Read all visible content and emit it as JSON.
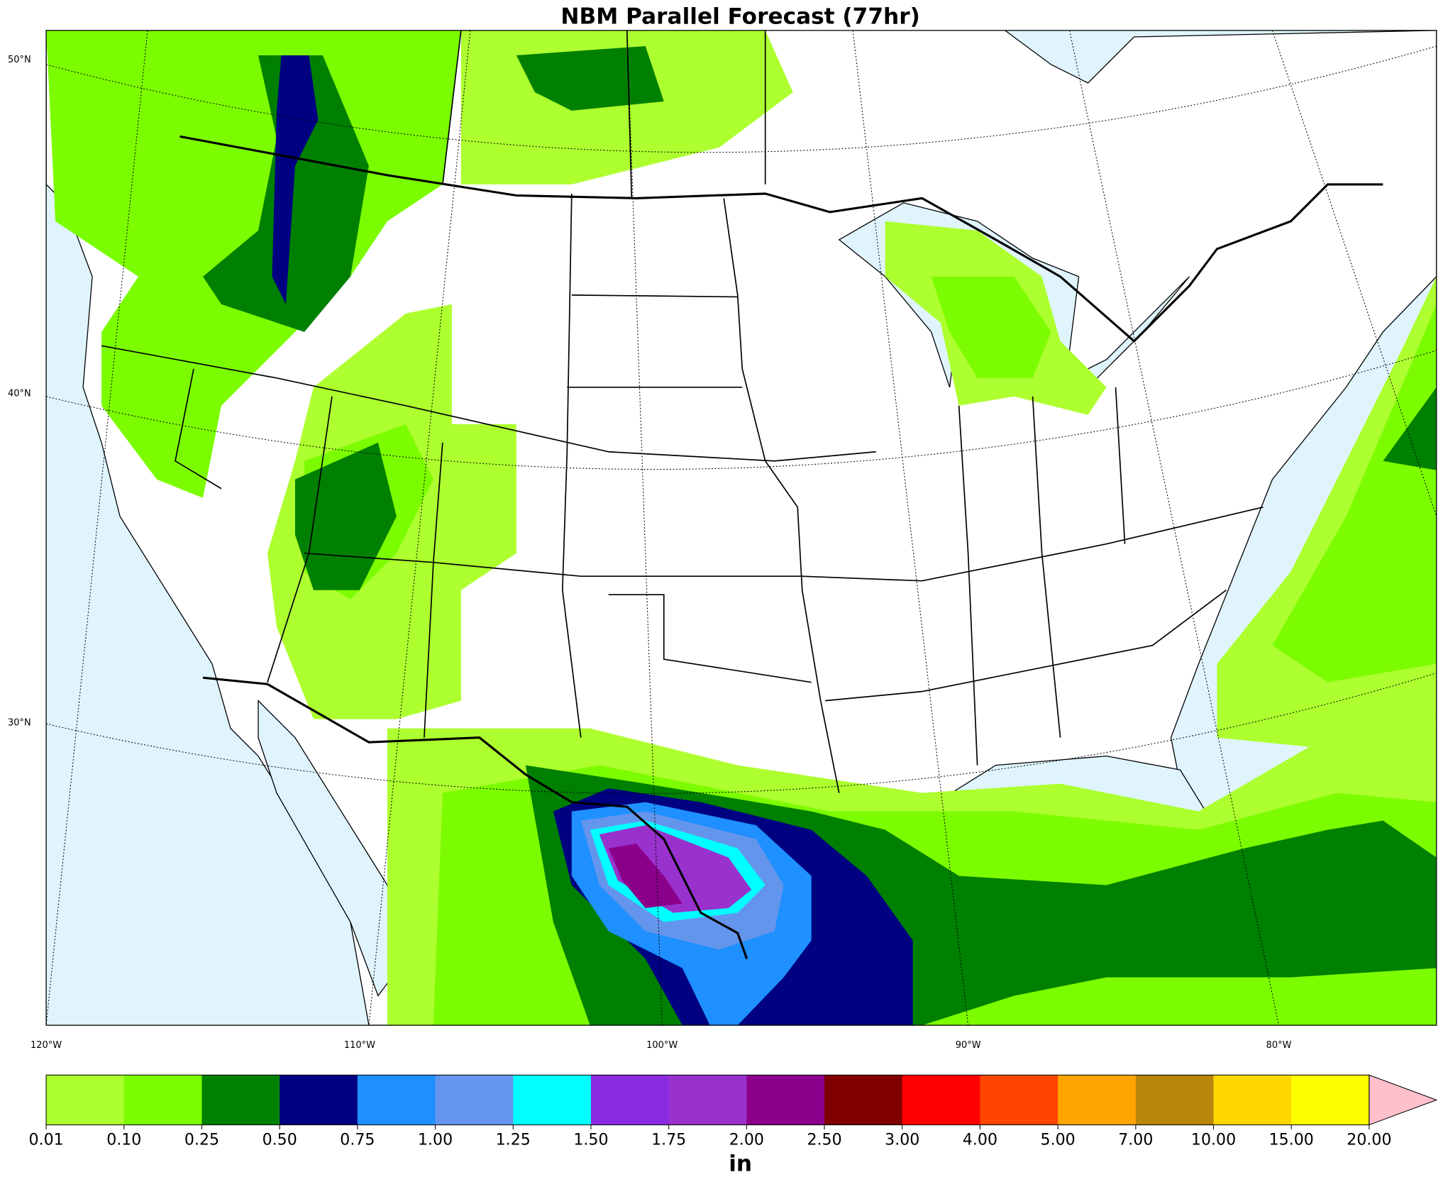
{
  "map": {
    "title": "NBM Parallel Forecast (77hr)",
    "lat_labels": [
      "50°N",
      "40°N",
      "30°N"
    ],
    "lon_labels": [
      "120°W",
      "110°W",
      "100°W",
      "90°W",
      "80°W"
    ]
  },
  "colorbar": {
    "ticks": [
      {
        "value": 0.01,
        "label": "0.01"
      },
      {
        "value": 0.1,
        "label": "0.10"
      },
      {
        "value": 0.25,
        "label": "0.25"
      },
      {
        "value": 0.5,
        "label": "0.50"
      },
      {
        "value": 0.75,
        "label": "0.75"
      },
      {
        "value": 1,
        "label": "1.00"
      },
      {
        "value": 1.25,
        "label": "1.25"
      },
      {
        "value": 1.5,
        "label": "1.50"
      },
      {
        "value": 1.75,
        "label": "1.75"
      },
      {
        "value": 2,
        "label": "2.00"
      },
      {
        "value": 2.5,
        "label": "2.50"
      },
      {
        "value": 3,
        "label": "3.00"
      },
      {
        "value": 4,
        "label": "4.00"
      },
      {
        "value": 5,
        "label": "5.00"
      },
      {
        "value": 7,
        "label": "7.00"
      },
      {
        "value": 10,
        "label": "10.00"
      },
      {
        "value": 15,
        "label": "15.00"
      },
      {
        "value": 20,
        "label": "20.00"
      }
    ],
    "colors": [
      "#adff2f",
      "#7cfc00",
      "#008000",
      "#000080",
      "#1e90ff",
      "#6495ed",
      "#00ffff",
      "#8a2be2",
      "#9932cc",
      "#8b008b",
      "#800000",
      "#ff0000",
      "#ff4500",
      "#ffa500",
      "#b8860b",
      "#ffd700",
      "#ffff00"
    ],
    "extend_color": "#ffc0cb",
    "unit": "in"
  }
}
